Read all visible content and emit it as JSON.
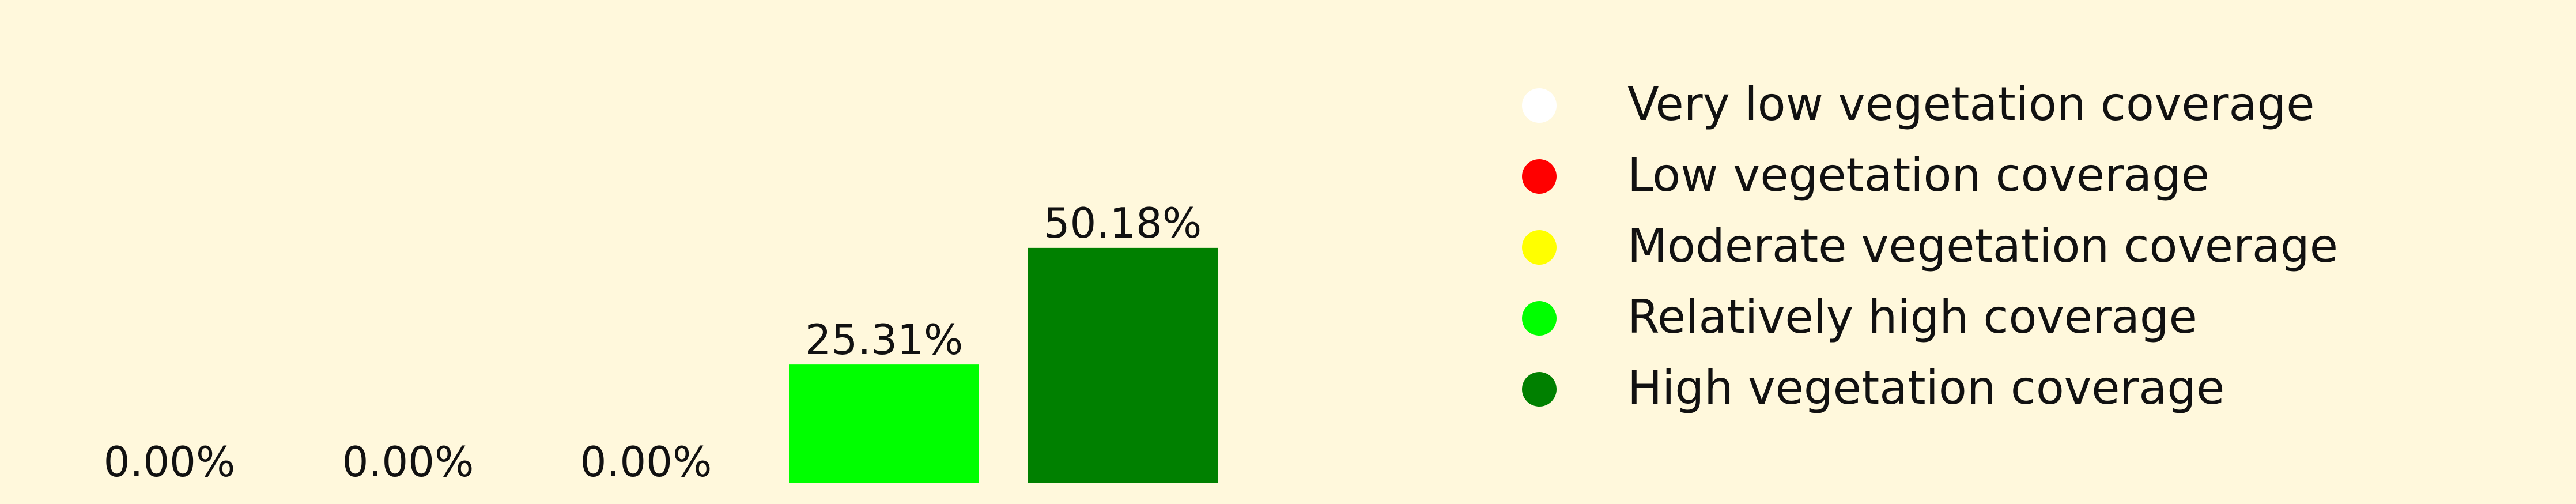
{
  "chart_data": {
    "type": "bar",
    "background": "#FFF8DC",
    "categories": [
      "Very low vegetation coverage",
      "Low vegetation coverage",
      "Moderate vegetation coverage",
      "Relatively high coverage",
      "High vegetation coverage"
    ],
    "values": [
      0,
      0,
      0,
      25.31,
      50.18
    ],
    "value_labels": [
      "0.00%",
      "0.00%",
      "0.00%",
      "25.31%",
      "50.18%"
    ],
    "colors": [
      "#FFFFFF",
      "#FF0000",
      "#FFFF00",
      "#00FF00",
      "#008000"
    ],
    "legend": {
      "placement": "right",
      "entries": [
        {
          "label": "Very low vegetation coverage",
          "color": "#FFFFFF"
        },
        {
          "label": "Low vegetation coverage",
          "color": "#FF0000"
        },
        {
          "label": "Moderate vegetation coverage",
          "color": "#FFFF00"
        },
        {
          "label": "Relatively high coverage",
          "color": "#00FF00"
        },
        {
          "label": "High vegetation coverage",
          "color": "#008000"
        }
      ]
    },
    "title": "",
    "xlabel": "",
    "ylabel": "",
    "ylim": [
      0,
      60
    ],
    "grid": false,
    "axes_visible": false
  }
}
